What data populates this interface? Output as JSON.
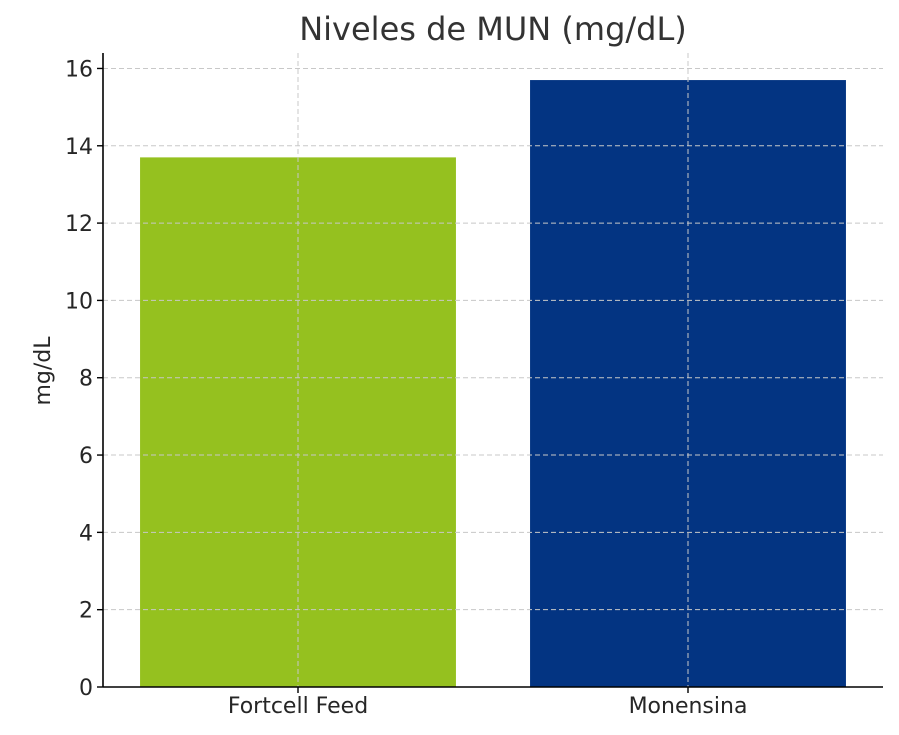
{
  "chart_data": {
    "type": "bar",
    "title": "Niveles de MUN (mg/dL)",
    "xlabel": "",
    "ylabel": "mg/dL",
    "categories": [
      "Fortcell Feed",
      "Monensina"
    ],
    "values": [
      13.7,
      15.7
    ],
    "colors": [
      "#95c11f",
      "#033482"
    ],
    "ylim": [
      0,
      16.4
    ],
    "yticks": [
      0,
      2,
      4,
      6,
      8,
      10,
      12,
      14,
      16
    ],
    "grid": true,
    "legend": "none"
  }
}
